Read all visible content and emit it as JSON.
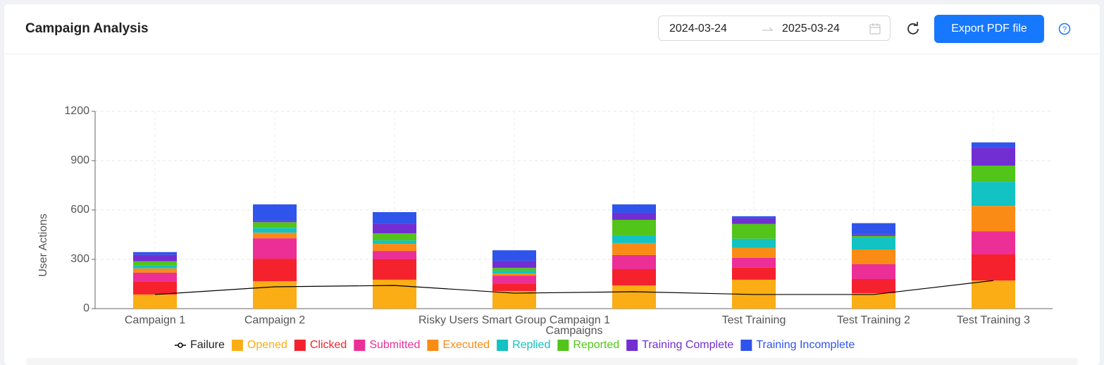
{
  "header": {
    "title": "Campaign Analysis",
    "start_date": "2024-03-24",
    "end_date": "2025-03-24",
    "export_button": "Export PDF file"
  },
  "chart_data": {
    "type": "bar",
    "stacked": true,
    "xlabel": "Campaigns",
    "ylabel": "User Actions",
    "categories": [
      "Campaign 1",
      "Campaign 2",
      null,
      "Risky Users Smart Group Campaign 1",
      null,
      "Test Training",
      "Test Training 2",
      "Test Training 3"
    ],
    "ylim": [
      0,
      1200
    ],
    "yticks": [
      0,
      300,
      600,
      900,
      1200
    ],
    "grid": true,
    "series": [
      {
        "name": "Failure",
        "type": "line",
        "color": "#000000",
        "values": [
          86,
          133,
          141,
          94,
          103,
          86,
          86,
          171
        ]
      },
      {
        "name": "Opened",
        "color": "#faad14",
        "values": [
          86,
          167,
          176,
          107,
          141,
          176,
          94,
          171
        ]
      },
      {
        "name": "Clicked",
        "color": "#f5222d",
        "values": [
          77,
          137,
          124,
          43,
          99,
          73,
          86,
          159
        ]
      },
      {
        "name": "Submitted",
        "color": "#eb2f96",
        "values": [
          56,
          124,
          51,
          51,
          86,
          60,
          90,
          141
        ]
      },
      {
        "name": "Executed",
        "color": "#fa8c16",
        "values": [
          26,
          34,
          43,
          13,
          73,
          60,
          90,
          154
        ]
      },
      {
        "name": "Replied",
        "color": "#13c2c2",
        "values": [
          17,
          30,
          21,
          17,
          47,
          56,
          73,
          146
        ]
      },
      {
        "name": "Reported",
        "color": "#52c41a",
        "values": [
          26,
          34,
          43,
          17,
          94,
          90,
          9,
          99
        ]
      },
      {
        "name": "Training Complete",
        "color": "#722ed1",
        "values": [
          39,
          9,
          60,
          43,
          43,
          34,
          9,
          111
        ]
      },
      {
        "name": "Training Incomplete",
        "color": "#2f54eb",
        "values": [
          17,
          99,
          69,
          64,
          51,
          13,
          69,
          30
        ]
      }
    ]
  }
}
